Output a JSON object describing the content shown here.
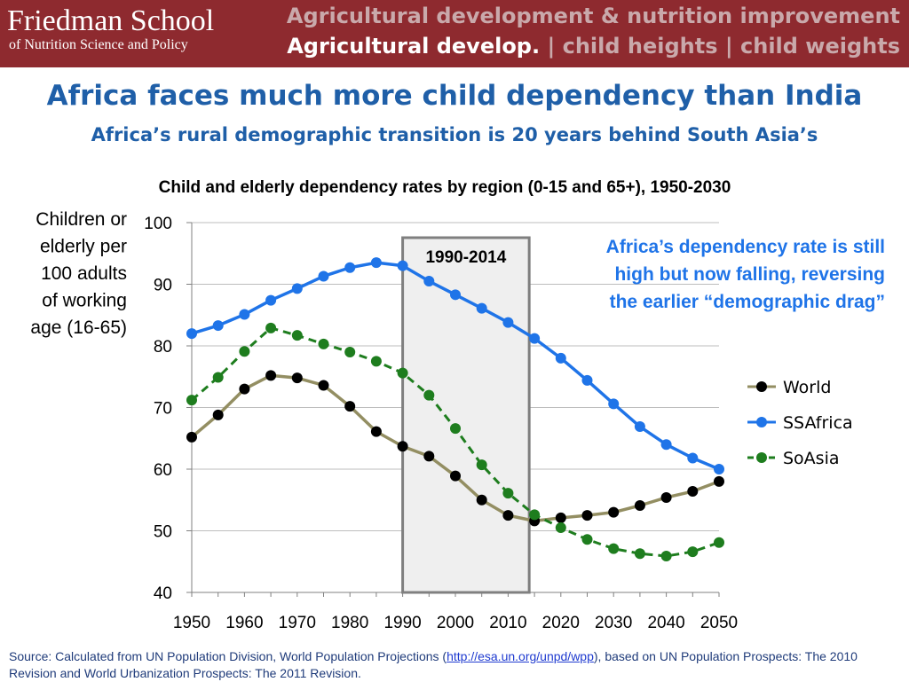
{
  "header": {
    "logo_line1": "Friedman School",
    "logo_line2": "of Nutrition Science and Policy",
    "section_title": "Agricultural development & nutrition improvement",
    "nav": [
      {
        "label": "Agricultural develop.",
        "active": true
      },
      {
        "label": "child heights",
        "active": false
      },
      {
        "label": "child weights",
        "active": false
      }
    ],
    "nav_separator": "|"
  },
  "slide": {
    "title": "Africa faces much more child dependency than India",
    "subtitle": "Africa’s rural demographic transition is 20 years behind South Asia’s"
  },
  "chart_data": {
    "type": "line",
    "title": "Child and elderly dependency rates by region (0-15 and 65+), 1950-2030",
    "ylabel_lines": [
      "Children or",
      "elderly per",
      "100 adults",
      "of working",
      "age (16-65)"
    ],
    "xlabel": "",
    "xlim": [
      1950,
      2050
    ],
    "ylim": [
      40,
      100
    ],
    "x_ticks": [
      1950,
      1960,
      1970,
      1980,
      1990,
      2000,
      2010,
      2020,
      2030,
      2040,
      2050
    ],
    "y_ticks": [
      40,
      50,
      60,
      70,
      80,
      90,
      100
    ],
    "grid": "horizontal",
    "legend_position": "right",
    "x": [
      1950,
      1955,
      1960,
      1965,
      1970,
      1975,
      1980,
      1985,
      1990,
      1995,
      2000,
      2005,
      2010,
      2015,
      2020,
      2025,
      2030,
      2035,
      2040,
      2045,
      2050
    ],
    "series": [
      {
        "name": "World",
        "color": "#938e62",
        "marker_color": "#000000",
        "dash": false,
        "values": [
          65.2,
          68.8,
          73.0,
          75.2,
          74.8,
          73.6,
          70.2,
          66.1,
          63.7,
          62.1,
          58.9,
          55.0,
          52.5,
          51.6,
          52.1,
          52.5,
          53.0,
          54.1,
          55.4,
          56.4,
          58.0
        ]
      },
      {
        "name": "SSAfrica",
        "color": "#1f74e8",
        "marker_color": "#1f74e8",
        "dash": false,
        "values": [
          82.0,
          83.3,
          85.1,
          87.4,
          89.3,
          91.3,
          92.7,
          93.5,
          93.0,
          90.5,
          88.3,
          86.1,
          83.8,
          81.2,
          78.0,
          74.4,
          70.6,
          66.9,
          64.0,
          61.8,
          60.0
        ]
      },
      {
        "name": "SoAsia",
        "color": "#1e7d1e",
        "marker_color": "#1e7d1e",
        "dash": true,
        "values": [
          71.2,
          74.9,
          79.1,
          82.9,
          81.7,
          80.3,
          79.0,
          77.5,
          75.6,
          72.0,
          66.6,
          60.7,
          56.1,
          52.6,
          50.5,
          48.6,
          47.1,
          46.3,
          45.9,
          46.6,
          48.1
        ]
      }
    ],
    "highlight_range": {
      "x_start": 1990,
      "x_end": 2014,
      "label": "1990-2014"
    },
    "annotation": {
      "lines": [
        "Africa’s dependency rate is still",
        "high but now falling, reversing",
        "the earlier “demographic drag”"
      ],
      "color": "#1f74e8"
    }
  },
  "footer": {
    "source_prefix": "Source:  Calculated from UN Population Division, World Population Projections (",
    "source_link": "http://esa.un.org/unpd/wpp",
    "source_suffix": "), based on UN Population Prospects: The 2010 Revision and World Urbanization Prospects: The 2011 Revision."
  }
}
